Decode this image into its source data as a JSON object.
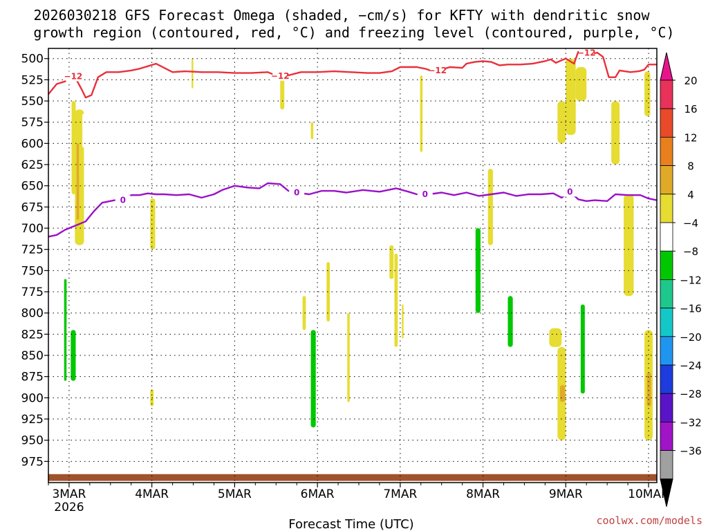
{
  "chart_data": {
    "type": "heatmap",
    "title_lines": [
      "2026030218 GFS Forecast Omega (shaded, −cm/s) for KFTY with dendritic snow",
      "growth region (contoured, red, °C) and freezing level (contoured, purple, °C)"
    ],
    "xlabel": "Forecast Time (UTC)",
    "x_unit": "days from 3MAR 00Z",
    "x_range": [
      -0.25,
      7.1
    ],
    "x_ticks": [
      {
        "label": "3MAR",
        "sublabel": "2026",
        "x": 0
      },
      {
        "label": "4MAR",
        "x": 1
      },
      {
        "label": "5MAR",
        "x": 2
      },
      {
        "label": "6MAR",
        "x": 3
      },
      {
        "label": "7MAR",
        "x": 4
      },
      {
        "label": "8MAR",
        "x": 5
      },
      {
        "label": "9MAR",
        "x": 6
      },
      {
        "label": "10MAR",
        "x": 7
      }
    ],
    "y_range_hpa": [
      488,
      1000
    ],
    "y_ticks": [
      500,
      525,
      550,
      575,
      600,
      625,
      650,
      675,
      700,
      725,
      750,
      775,
      800,
      825,
      850,
      875,
      900,
      925,
      950,
      975
    ],
    "colorbar": {
      "labels": [
        "20",
        "16",
        "12",
        "8",
        "4",
        "−4",
        "−8",
        "−12",
        "−16",
        "−20",
        "−24",
        "−28",
        "−32",
        "−36"
      ],
      "colors": [
        "#e8325a",
        "#e84a2a",
        "#e8801e",
        "#e0aa28",
        "#e6dc32",
        "#ffffff",
        "#00c800",
        "#1ec88c",
        "#14c8c8",
        "#1e96f0",
        "#1e3cdc",
        "#5a14c8",
        "#a014c8",
        "#a0a0a0"
      ],
      "top_arrow": "#e8148c",
      "bottom_arrow": "#000000"
    },
    "shaded_cells": [
      {
        "x0": -0.08,
        "x1": -0.02,
        "p0": 688,
        "p1": 955,
        "level": "−4"
      },
      {
        "x0": -0.06,
        "x1": -0.03,
        "p0": 760,
        "p1": 880,
        "level": "−8"
      },
      {
        "x0": -0.03,
        "x1": 0.12,
        "p0": 810,
        "p1": 945,
        "level": "−4"
      },
      {
        "x0": 0.02,
        "x1": 0.08,
        "p0": 820,
        "p1": 880,
        "level": "−8"
      },
      {
        "x0": 0.03,
        "x1": 0.08,
        "p0": 550,
        "p1": 660,
        "level": "4"
      },
      {
        "x0": 0.05,
        "x1": 0.09,
        "p0": 470,
        "p1": 545,
        "level": "−4"
      },
      {
        "x0": 0.07,
        "x1": 0.18,
        "p0": 560,
        "p1": 720,
        "level": "4"
      },
      {
        "x0": 0.09,
        "x1": 0.12,
        "p0": 600,
        "p1": 690,
        "level": "8"
      },
      {
        "x0": 0.12,
        "x1": 0.16,
        "p0": 575,
        "p1": 640,
        "level": "4"
      },
      {
        "x0": 0.16,
        "x1": 0.2,
        "p0": 565,
        "p1": 605,
        "level": "−4"
      },
      {
        "x0": 1.0,
        "x1": 1.05,
        "p0": 470,
        "p1": 500,
        "level": "−4"
      },
      {
        "x0": 0.98,
        "x1": 1.04,
        "p0": 665,
        "p1": 725,
        "level": "4"
      },
      {
        "x0": 0.98,
        "x1": 1.02,
        "p0": 890,
        "p1": 910,
        "level": "4"
      },
      {
        "x0": 1.48,
        "x1": 1.5,
        "p0": 500,
        "p1": 535,
        "level": "4"
      },
      {
        "x0": 2.57,
        "x1": 2.62,
        "p0": 470,
        "p1": 570,
        "level": "−4"
      },
      {
        "x0": 2.55,
        "x1": 2.6,
        "p0": 520,
        "p1": 560,
        "level": "4"
      },
      {
        "x0": 2.92,
        "x1": 2.95,
        "p0": 575,
        "p1": 595,
        "level": "4"
      },
      {
        "x0": 2.82,
        "x1": 2.86,
        "p0": 780,
        "p1": 820,
        "level": "4"
      },
      {
        "x0": 2.87,
        "x1": 3.05,
        "p0": 790,
        "p1": 960,
        "level": "−4"
      },
      {
        "x0": 2.92,
        "x1": 2.98,
        "p0": 820,
        "p1": 935,
        "level": "−8"
      },
      {
        "x0": 3.11,
        "x1": 3.15,
        "p0": 740,
        "p1": 810,
        "level": "4"
      },
      {
        "x0": 3.36,
        "x1": 3.39,
        "p0": 800,
        "p1": 905,
        "level": "4"
      },
      {
        "x0": 3.93,
        "x1": 3.97,
        "p0": 730,
        "p1": 840,
        "level": "4"
      },
      {
        "x0": 4.01,
        "x1": 4.07,
        "p0": 630,
        "p1": 930,
        "level": "−4"
      },
      {
        "x0": 4.02,
        "x1": 4.04,
        "p0": 790,
        "p1": 830,
        "level": "4"
      },
      {
        "x0": 3.87,
        "x1": 3.92,
        "p0": 720,
        "p1": 760,
        "level": "4"
      },
      {
        "x0": 4.24,
        "x1": 4.27,
        "p0": 520,
        "p1": 610,
        "level": "4"
      },
      {
        "x0": 4.3,
        "x1": 4.33,
        "p0": 630,
        "p1": 695,
        "level": "−4"
      },
      {
        "x0": 4.36,
        "x1": 4.4,
        "p0": 505,
        "p1": 540,
        "level": "−4"
      },
      {
        "x0": 4.9,
        "x1": 4.98,
        "p0": 470,
        "p1": 850,
        "level": "−4"
      },
      {
        "x0": 4.91,
        "x1": 4.97,
        "p0": 700,
        "p1": 800,
        "level": "−8"
      },
      {
        "x0": 4.97,
        "x1": 5.04,
        "p0": 470,
        "p1": 720,
        "level": "−4"
      },
      {
        "x0": 5.06,
        "x1": 5.12,
        "p0": 630,
        "p1": 720,
        "level": "4"
      },
      {
        "x0": 5.18,
        "x1": 5.28,
        "p0": 810,
        "p1": 870,
        "level": "−4"
      },
      {
        "x0": 5.28,
        "x1": 5.4,
        "p0": 780,
        "p1": 910,
        "level": "−4"
      },
      {
        "x0": 5.3,
        "x1": 5.36,
        "p0": 780,
        "p1": 840,
        "level": "−8"
      },
      {
        "x0": 5.4,
        "x1": 5.5,
        "p0": 790,
        "p1": 920,
        "level": "−4"
      },
      {
        "x0": 5.8,
        "x1": 5.95,
        "p0": 818,
        "p1": 840,
        "level": "4"
      },
      {
        "x0": 5.9,
        "x1": 6.0,
        "p0": 840,
        "p1": 950,
        "level": "4"
      },
      {
        "x0": 5.93,
        "x1": 5.99,
        "p0": 885,
        "p1": 905,
        "level": "8"
      },
      {
        "x0": 5.9,
        "x1": 6.0,
        "p0": 550,
        "p1": 600,
        "level": "4"
      },
      {
        "x0": 6.0,
        "x1": 6.12,
        "p0": 500,
        "p1": 590,
        "level": "4"
      },
      {
        "x0": 6.12,
        "x1": 6.25,
        "p0": 510,
        "p1": 550,
        "level": "4"
      },
      {
        "x0": 6.15,
        "x1": 6.25,
        "p0": 745,
        "p1": 920,
        "level": "−4"
      },
      {
        "x0": 6.18,
        "x1": 6.23,
        "p0": 790,
        "p1": 895,
        "level": "−8"
      },
      {
        "x0": 6.25,
        "x1": 6.32,
        "p0": 665,
        "p1": 850,
        "level": "−4"
      },
      {
        "x0": 6.55,
        "x1": 6.65,
        "p0": 550,
        "p1": 625,
        "level": "4"
      },
      {
        "x0": 6.7,
        "x1": 6.82,
        "p0": 660,
        "p1": 780,
        "level": "4"
      },
      {
        "x0": 6.82,
        "x1": 6.92,
        "p0": 870,
        "p1": 950,
        "level": "−4"
      },
      {
        "x0": 6.95,
        "x1": 7.02,
        "p0": 515,
        "p1": 568,
        "level": "4"
      },
      {
        "x0": 6.95,
        "x1": 7.05,
        "p0": 820,
        "p1": 950,
        "level": "4"
      },
      {
        "x0": 6.98,
        "x1": 7.03,
        "p0": 870,
        "p1": 910,
        "level": "8"
      }
    ],
    "dgz_line": {
      "name": "dendritic snow growth region −12°C",
      "label": "−12",
      "points": [
        [
          -0.25,
          542
        ],
        [
          -0.15,
          530
        ],
        [
          -0.05,
          527
        ],
        [
          0.05,
          521
        ],
        [
          0.1,
          527
        ],
        [
          0.15,
          536
        ],
        [
          0.2,
          546
        ],
        [
          0.27,
          543
        ],
        [
          0.35,
          522
        ],
        [
          0.45,
          516
        ],
        [
          0.6,
          516
        ],
        [
          0.75,
          514
        ],
        [
          0.85,
          512
        ],
        [
          0.95,
          509
        ],
        [
          1.05,
          506
        ],
        [
          1.15,
          511
        ],
        [
          1.25,
          516
        ],
        [
          1.4,
          515
        ],
        [
          1.6,
          516
        ],
        [
          1.8,
          516
        ],
        [
          2.0,
          517
        ],
        [
          2.2,
          517
        ],
        [
          2.4,
          516
        ],
        [
          2.5,
          520
        ],
        [
          2.6,
          521
        ],
        [
          2.8,
          516
        ],
        [
          3.0,
          516
        ],
        [
          3.2,
          515
        ],
        [
          3.4,
          516
        ],
        [
          3.6,
          517
        ],
        [
          3.75,
          517
        ],
        [
          3.9,
          515
        ],
        [
          4.0,
          510
        ],
        [
          4.1,
          510
        ],
        [
          4.2,
          510
        ],
        [
          4.3,
          512
        ],
        [
          4.4,
          515
        ],
        [
          4.5,
          513
        ],
        [
          4.6,
          510
        ],
        [
          4.75,
          511
        ],
        [
          4.8,
          506
        ],
        [
          4.9,
          504
        ],
        [
          5.0,
          503
        ],
        [
          5.1,
          504
        ],
        [
          5.2,
          508
        ],
        [
          5.3,
          507
        ],
        [
          5.45,
          507
        ],
        [
          5.6,
          506
        ],
        [
          5.7,
          504
        ],
        [
          5.75,
          503
        ],
        [
          5.82,
          501
        ],
        [
          5.88,
          505
        ],
        [
          5.95,
          502
        ],
        [
          6.0,
          500
        ],
        [
          6.1,
          506
        ],
        [
          6.15,
          492
        ],
        [
          6.2,
          492
        ],
        [
          6.3,
          495
        ],
        [
          6.38,
          493
        ],
        [
          6.45,
          498
        ],
        [
          6.52,
          522
        ],
        [
          6.6,
          522
        ],
        [
          6.65,
          514
        ],
        [
          6.78,
          516
        ],
        [
          6.88,
          515
        ],
        [
          6.95,
          513
        ],
        [
          7.0,
          507
        ],
        [
          7.1,
          507
        ]
      ]
    },
    "freezing_line": {
      "name": "freezing level 0°C",
      "label": "0",
      "points": [
        [
          -0.25,
          710
        ],
        [
          -0.15,
          708
        ],
        [
          -0.05,
          702
        ],
        [
          0.05,
          698
        ],
        [
          0.15,
          694
        ],
        [
          0.2,
          692
        ],
        [
          0.3,
          680
        ],
        [
          0.4,
          670
        ],
        [
          0.55,
          667
        ],
        [
          0.65,
          667
        ],
        [
          0.75,
          661
        ],
        [
          0.85,
          661
        ],
        [
          0.95,
          659
        ],
        [
          1.05,
          660
        ],
        [
          1.15,
          660
        ],
        [
          1.3,
          661
        ],
        [
          1.45,
          660
        ],
        [
          1.6,
          664
        ],
        [
          1.75,
          660
        ],
        [
          1.85,
          655
        ],
        [
          2.0,
          650
        ],
        [
          2.15,
          652
        ],
        [
          2.3,
          653
        ],
        [
          2.4,
          647
        ],
        [
          2.55,
          648
        ],
        [
          2.65,
          656
        ],
        [
          2.75,
          658
        ],
        [
          2.9,
          660
        ],
        [
          3.05,
          656
        ],
        [
          3.2,
          656
        ],
        [
          3.35,
          658
        ],
        [
          3.55,
          655
        ],
        [
          3.75,
          657
        ],
        [
          3.95,
          653
        ],
        [
          4.1,
          657
        ],
        [
          4.2,
          660
        ],
        [
          4.35,
          660
        ],
        [
          4.5,
          658
        ],
        [
          4.65,
          661
        ],
        [
          4.8,
          658
        ],
        [
          4.95,
          662
        ],
        [
          5.1,
          660
        ],
        [
          5.25,
          658
        ],
        [
          5.4,
          662
        ],
        [
          5.55,
          660
        ],
        [
          5.7,
          660
        ],
        [
          5.85,
          659
        ],
        [
          5.95,
          664
        ],
        [
          6.05,
          657
        ],
        [
          6.15,
          666
        ],
        [
          6.25,
          668
        ],
        [
          6.35,
          667
        ],
        [
          6.5,
          668
        ],
        [
          6.6,
          660
        ],
        [
          6.75,
          661
        ],
        [
          6.9,
          661
        ],
        [
          7.0,
          665
        ],
        [
          7.1,
          667
        ]
      ]
    },
    "ground_band_hpa": [
      990,
      998
    ],
    "ground_color": "#a0522d"
  },
  "credit": "coolwx.com/models",
  "credit_color": "#c04040"
}
